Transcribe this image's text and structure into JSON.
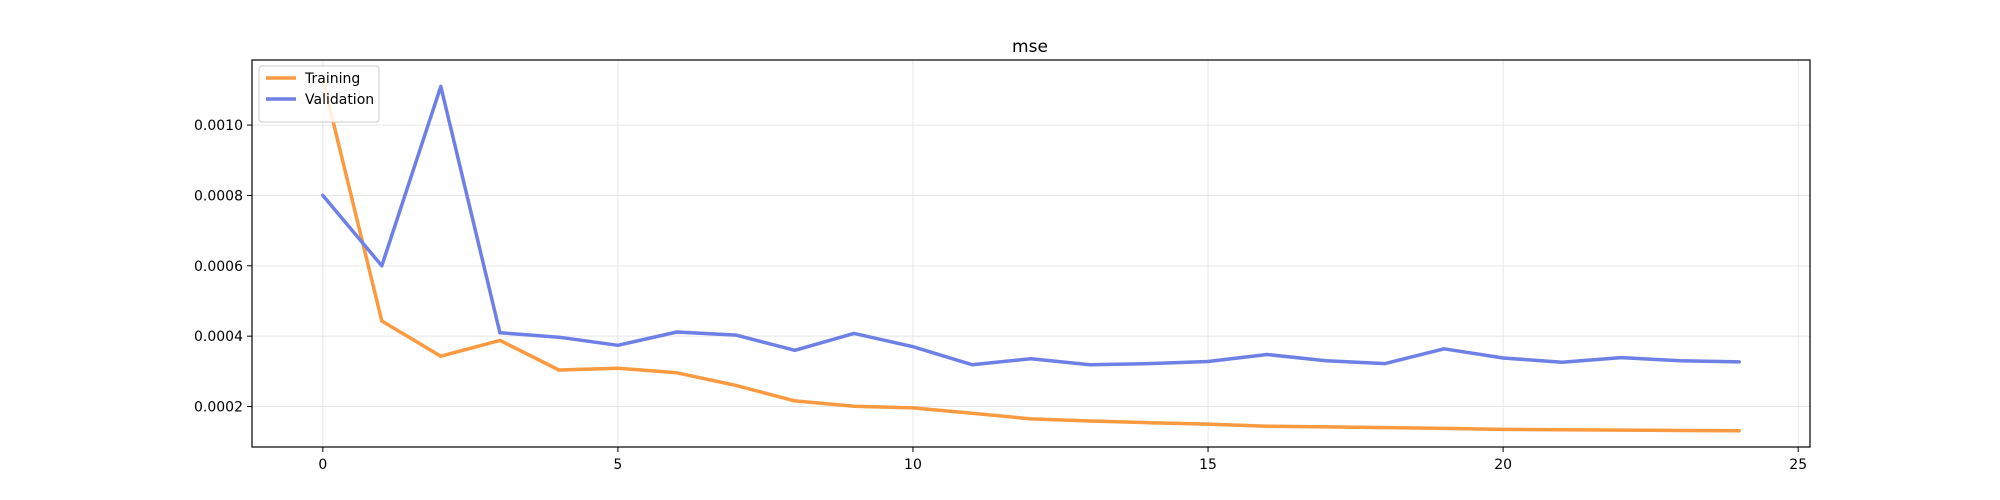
{
  "chart_data": {
    "type": "line",
    "title": "mse",
    "xlabel": "",
    "ylabel": "",
    "xlim": [
      -1.2,
      25.2
    ],
    "ylim": [
      8.5e-05,
      0.001185
    ],
    "xticks": [
      0,
      5,
      10,
      15,
      20,
      25
    ],
    "xtick_labels": [
      "0",
      "5",
      "10",
      "15",
      "20",
      "25"
    ],
    "yticks": [
      0.0002,
      0.0004,
      0.0006,
      0.0008,
      0.001
    ],
    "ytick_labels": [
      "0.0002",
      "0.0004",
      "0.0006",
      "0.0008",
      "0.0010"
    ],
    "grid": true,
    "legend_position": "top-left",
    "x": [
      0,
      1,
      2,
      3,
      4,
      5,
      6,
      7,
      8,
      9,
      10,
      11,
      12,
      13,
      14,
      15,
      16,
      17,
      18,
      19,
      20,
      21,
      22,
      23,
      24
    ],
    "series": [
      {
        "name": "Training",
        "color": "#fb9a40",
        "values": [
          0.00113,
          0.000443,
          0.000343,
          0.000388,
          0.000304,
          0.000309,
          0.000296,
          0.00026,
          0.000216,
          0.000201,
          0.000196,
          0.000181,
          0.000165,
          0.000159,
          0.000154,
          0.00015,
          0.000144,
          0.000142,
          0.00014,
          0.000138,
          0.000135,
          0.000134,
          0.000133,
          0.000132,
          0.000131
        ]
      },
      {
        "name": "Validation",
        "color": "#6e80e6",
        "values": [
          0.0008,
          0.0006,
          0.00111,
          0.00041,
          0.000397,
          0.000374,
          0.000412,
          0.000403,
          0.00036,
          0.000408,
          0.00037,
          0.000319,
          0.000336,
          0.000319,
          0.000322,
          0.000328,
          0.000348,
          0.00033,
          0.000322,
          0.000364,
          0.000338,
          0.000326,
          0.000339,
          0.00033,
          0.000327
        ]
      }
    ]
  }
}
